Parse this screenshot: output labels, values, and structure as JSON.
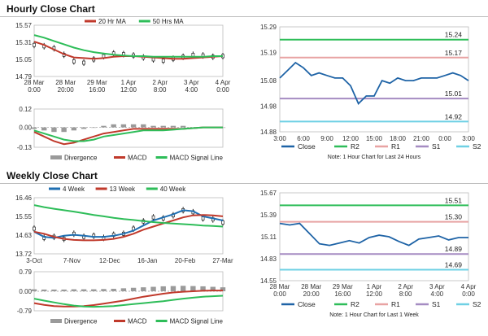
{
  "colors": {
    "ma20": "#c0392b",
    "ma50": "#2ebd59",
    "blue": "#1f6fb2",
    "dblue": "#1e63a6",
    "r2": "#2ebd59",
    "r1": "#e8a3a3",
    "s1": "#a58cc2",
    "s2": "#6fd0e4",
    "hist": "#9a9a9a",
    "black": "#222222"
  },
  "hourly": {
    "title": "Hourly Close Chart",
    "price_panel": {
      "type": "line",
      "legend": [
        "20 Hr MA",
        "50 Hrs MA"
      ],
      "ylim": [
        14.79,
        15.57
      ],
      "yticks": [
        "15.57",
        "15.31",
        "15.05",
        "14.79"
      ],
      "xticks": [
        {
          "line1": "28 Mar",
          "line2": "0:00"
        },
        {
          "line1": "28 Mar",
          "line2": "20:00"
        },
        {
          "line1": "29 Mar",
          "line2": "16:00"
        },
        {
          "line1": "1 Apr",
          "line2": "12:00"
        },
        {
          "line1": "2 Apr",
          "line2": "8:00"
        },
        {
          "line1": "3 Apr",
          "line2": "4:00"
        },
        {
          "line1": "4 Apr",
          "line2": "0:00"
        }
      ],
      "ma20": [
        15.32,
        15.27,
        15.2,
        15.13,
        15.08,
        15.07,
        15.06,
        15.07,
        15.09,
        15.1,
        15.1,
        15.09,
        15.08,
        15.07,
        15.06,
        15.06,
        15.07,
        15.08,
        15.09,
        15.1
      ],
      "ma50": [
        15.42,
        15.38,
        15.33,
        15.28,
        15.23,
        15.19,
        15.16,
        15.14,
        15.12,
        15.11,
        15.1,
        15.1,
        15.09,
        15.09,
        15.09,
        15.09,
        15.09,
        15.09,
        15.1,
        15.1
      ],
      "close": [
        15.27,
        15.25,
        15.22,
        15.12,
        15.02,
        15.0,
        15.05,
        15.1,
        15.14,
        15.13,
        15.11,
        15.08,
        15.05,
        15.03,
        15.06,
        15.09,
        15.12,
        15.11,
        15.09,
        15.1
      ]
    },
    "macd_panel": {
      "type": "line",
      "ylim": [
        -0.13,
        0.12
      ],
      "yticks": [
        "0.12",
        "0.00",
        "-0.13"
      ],
      "legend": [
        "Divergence",
        "MACD",
        "MACD Signal Line"
      ],
      "divergence": [
        -0.01,
        -0.02,
        -0.03,
        -0.03,
        -0.02,
        -0.01,
        0.0,
        0.01,
        0.02,
        0.02,
        0.02,
        0.02,
        0.01,
        0.01,
        0.01,
        0.01,
        0.0,
        0.0,
        0.0,
        0.0
      ],
      "macd": [
        -0.03,
        -0.06,
        -0.09,
        -0.11,
        -0.1,
        -0.08,
        -0.06,
        -0.04,
        -0.03,
        -0.02,
        -0.01,
        -0.01,
        -0.01,
        -0.01,
        -0.01,
        -0.01,
        -0.005,
        0.0,
        0.0,
        0.0
      ],
      "signal": [
        -0.02,
        -0.04,
        -0.06,
        -0.08,
        -0.09,
        -0.09,
        -0.08,
        -0.06,
        -0.05,
        -0.04,
        -0.03,
        -0.02,
        -0.02,
        -0.02,
        -0.015,
        -0.01,
        -0.005,
        0.0,
        0.0,
        0.0
      ]
    },
    "pivot_panel": {
      "type": "line",
      "ylim": [
        14.88,
        15.29
      ],
      "yticks": [
        "15.29",
        "15.19",
        "15.08",
        "14.98",
        "14.88"
      ],
      "xticks": [
        "3:00",
        "6:00",
        "9:00",
        "12:00",
        "15:00",
        "18:00",
        "21:00",
        "0:00",
        "3:00"
      ],
      "levels": {
        "R2": 15.24,
        "R1": 15.17,
        "S1": 15.01,
        "S2": 14.92
      },
      "level_labels": {
        "R2": "15.24",
        "R1": "15.17",
        "S1": "15.01",
        "S2": "14.92"
      },
      "close": [
        15.09,
        15.12,
        15.15,
        15.13,
        15.1,
        15.11,
        15.1,
        15.09,
        15.09,
        15.06,
        14.99,
        15.02,
        15.02,
        15.08,
        15.07,
        15.09,
        15.08,
        15.08,
        15.09,
        15.09,
        15.09,
        15.1,
        15.11,
        15.1,
        15.08
      ],
      "legend": [
        "Close",
        "R2",
        "R1",
        "S1",
        "S2"
      ],
      "note": "Note: 1 Hour Chart for Last 24 Hours"
    }
  },
  "weekly": {
    "title": "Weekly Close Chart",
    "price_panel": {
      "type": "line",
      "legend": [
        "4 Week",
        "13 Week",
        "40 Week"
      ],
      "ylim": [
        13.72,
        16.46
      ],
      "yticks": [
        "16.46",
        "15.55",
        "14.63",
        "13.72"
      ],
      "xticks": [
        "3-Oct",
        "7-Nov",
        "12-Dec",
        "16-Jan",
        "20-Feb",
        "27-Mar"
      ],
      "w4": [
        14.8,
        14.55,
        14.5,
        14.6,
        14.65,
        14.6,
        14.55,
        14.55,
        14.6,
        14.7,
        14.85,
        15.1,
        15.35,
        15.5,
        15.65,
        15.85,
        15.8,
        15.55,
        15.45,
        15.35
      ],
      "w13": [
        14.8,
        14.7,
        14.55,
        14.45,
        14.4,
        14.38,
        14.38,
        14.4,
        14.45,
        14.55,
        14.7,
        14.9,
        15.05,
        15.2,
        15.35,
        15.5,
        15.6,
        15.62,
        15.6,
        15.55
      ],
      "w40": [
        16.1,
        16.0,
        15.92,
        15.85,
        15.78,
        15.7,
        15.62,
        15.55,
        15.48,
        15.42,
        15.37,
        15.32,
        15.27,
        15.23,
        15.2,
        15.17,
        15.14,
        15.1,
        15.08,
        15.05
      ],
      "close": [
        14.95,
        14.5,
        14.55,
        14.45,
        14.7,
        14.55,
        14.6,
        14.5,
        14.65,
        14.7,
        14.95,
        15.3,
        15.5,
        15.45,
        15.6,
        15.85,
        15.75,
        15.45,
        15.4,
        15.25
      ]
    },
    "macd_panel": {
      "type": "line",
      "ylim": [
        -0.79,
        0.79
      ],
      "yticks": [
        "0.79",
        "0.00",
        "-0.79"
      ],
      "legend": [
        "Divergence",
        "MACD",
        "MACD Signal Line"
      ],
      "divergence": [
        0.08,
        0.07,
        0.07,
        0.07,
        0.08,
        0.08,
        0.08,
        0.09,
        0.1,
        0.12,
        0.14,
        0.16,
        0.18,
        0.2,
        0.21,
        0.22,
        0.21,
        0.2,
        0.18,
        0.16
      ],
      "macd": [
        -0.48,
        -0.55,
        -0.6,
        -0.62,
        -0.62,
        -0.6,
        -0.56,
        -0.5,
        -0.44,
        -0.38,
        -0.3,
        -0.22,
        -0.16,
        -0.1,
        -0.05,
        -0.02,
        0.0,
        0.02,
        0.03,
        0.03
      ],
      "signal": [
        -0.3,
        -0.38,
        -0.45,
        -0.52,
        -0.58,
        -0.62,
        -0.63,
        -0.62,
        -0.6,
        -0.56,
        -0.52,
        -0.48,
        -0.44,
        -0.4,
        -0.35,
        -0.3,
        -0.26,
        -0.22,
        -0.2,
        -0.18
      ]
    },
    "pivot_panel": {
      "type": "line",
      "ylim": [
        14.55,
        15.67
      ],
      "yticks": [
        "15.67",
        "15.39",
        "15.11",
        "14.83",
        "14.55"
      ],
      "xticks": [
        {
          "line1": "28 Mar",
          "line2": "0:00"
        },
        {
          "line1": "28 Mar",
          "line2": "20:00"
        },
        {
          "line1": "29 Mar",
          "line2": "16:00"
        },
        {
          "line1": "1 Apr",
          "line2": "12:00"
        },
        {
          "line1": "2 Apr",
          "line2": "8:00"
        },
        {
          "line1": "3 Apr",
          "line2": "4:00"
        },
        {
          "line1": "4 Apr",
          "line2": "0:00"
        }
      ],
      "levels": {
        "R2": 15.51,
        "R1": 15.3,
        "S1": 14.89,
        "S2": 14.69
      },
      "level_labels": {
        "R2": "15.51",
        "R1": "15.30",
        "S1": "14.89",
        "S2": "14.69"
      },
      "close": [
        15.28,
        15.26,
        15.28,
        15.15,
        15.02,
        15.0,
        15.03,
        15.06,
        15.03,
        15.1,
        15.13,
        15.11,
        15.05,
        15.0,
        15.08,
        15.1,
        15.12,
        15.07,
        15.1,
        15.1
      ],
      "legend": [
        "Close",
        "R2",
        "R1",
        "S1",
        "S2"
      ],
      "note": "Note: 1 Hour Chart for Last 1 Week"
    }
  }
}
